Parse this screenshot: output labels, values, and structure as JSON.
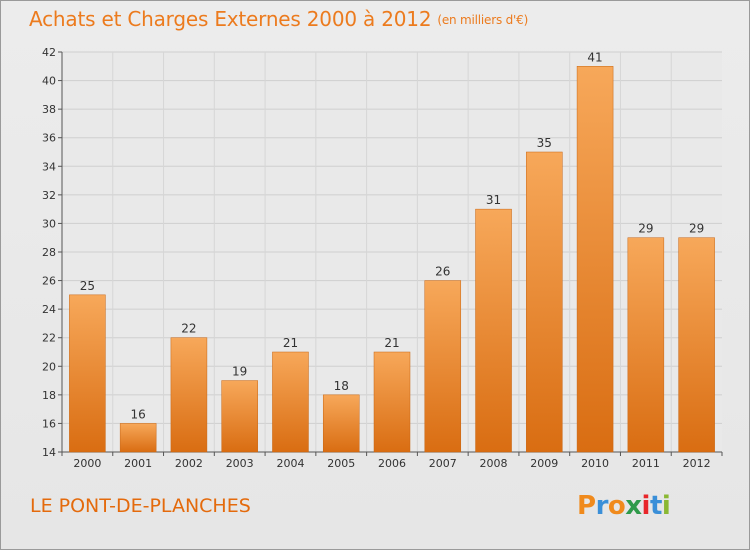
{
  "header": {
    "title": "Achats et Charges Externes 2000 à 2012",
    "unit": "(en milliers d'€)"
  },
  "footer": {
    "commune": "LE PONT-DE-PLANCHES",
    "logo_letters": [
      "P",
      "r",
      "o",
      "x",
      "i",
      "t",
      "i"
    ],
    "logo_colors": [
      "#f08a1c",
      "#3a8fd8",
      "#f08a1c",
      "#2f9a4a",
      "#e8262a",
      "#3a8fd8",
      "#8ab833"
    ]
  },
  "chart_data": {
    "type": "bar",
    "title": "Achats et Charges Externes 2000 à 2012",
    "subtitle": "(en milliers d'€)",
    "categories": [
      "2000",
      "2001",
      "2002",
      "2003",
      "2004",
      "2005",
      "2006",
      "2007",
      "2008",
      "2009",
      "2010",
      "2011",
      "2012"
    ],
    "values": [
      25,
      16,
      22,
      19,
      21,
      18,
      21,
      26,
      31,
      35,
      41,
      29,
      29
    ],
    "ylim": [
      14,
      42
    ],
    "yticks": [
      14,
      16,
      18,
      20,
      22,
      24,
      26,
      28,
      30,
      32,
      34,
      36,
      38,
      40,
      42
    ],
    "grid": true,
    "bar_color": "#ec8a2e"
  }
}
